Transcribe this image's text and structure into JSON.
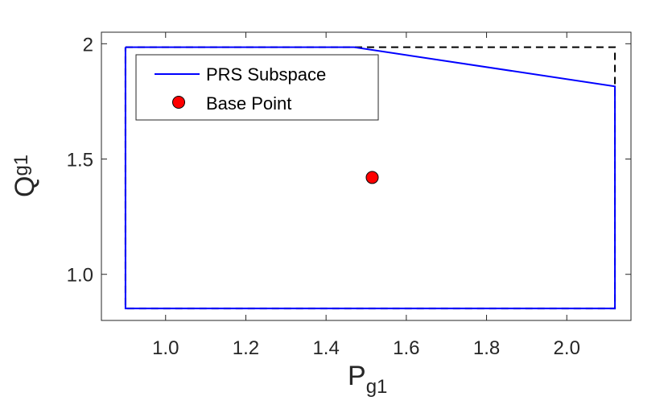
{
  "chart_data": {
    "type": "line",
    "xlabel": {
      "main": "P",
      "sub": "g1"
    },
    "ylabel": {
      "main": "Q",
      "sub": "g1"
    },
    "xlim": [
      0.84,
      2.16
    ],
    "ylim": [
      0.8,
      2.05
    ],
    "xticks": [
      {
        "value": 1.0,
        "label": "1.0"
      },
      {
        "value": 1.2,
        "label": "1.2"
      },
      {
        "value": 1.4,
        "label": "1.4"
      },
      {
        "value": 1.6,
        "label": "1.6"
      },
      {
        "value": 1.8,
        "label": "1.8"
      },
      {
        "value": 2.0,
        "label": "2.0"
      }
    ],
    "yticks": [
      {
        "value": 1.0,
        "label": "1.0"
      },
      {
        "value": 1.5,
        "label": "1.5"
      },
      {
        "value": 2.0,
        "label": "2"
      }
    ],
    "grid": false,
    "legend_position": "top-left",
    "series": [
      {
        "name": "PRS Subspace",
        "kind": "line",
        "color": "#0000ff",
        "x": [
          0.9,
          1.47,
          2.12,
          2.12,
          0.9,
          0.9
        ],
        "y": [
          1.985,
          1.985,
          1.815,
          0.852,
          0.852,
          1.985
        ]
      },
      {
        "name": "Base Point",
        "kind": "point",
        "color": "#ff0000",
        "x": [
          1.515
        ],
        "y": [
          1.42
        ]
      },
      {
        "kind": "dashed-boundary",
        "color": "#000000",
        "x": [
          0.9,
          2.12,
          2.12,
          0.9,
          0.9
        ],
        "y": [
          1.985,
          1.985,
          0.852,
          0.852,
          1.985
        ]
      }
    ]
  }
}
